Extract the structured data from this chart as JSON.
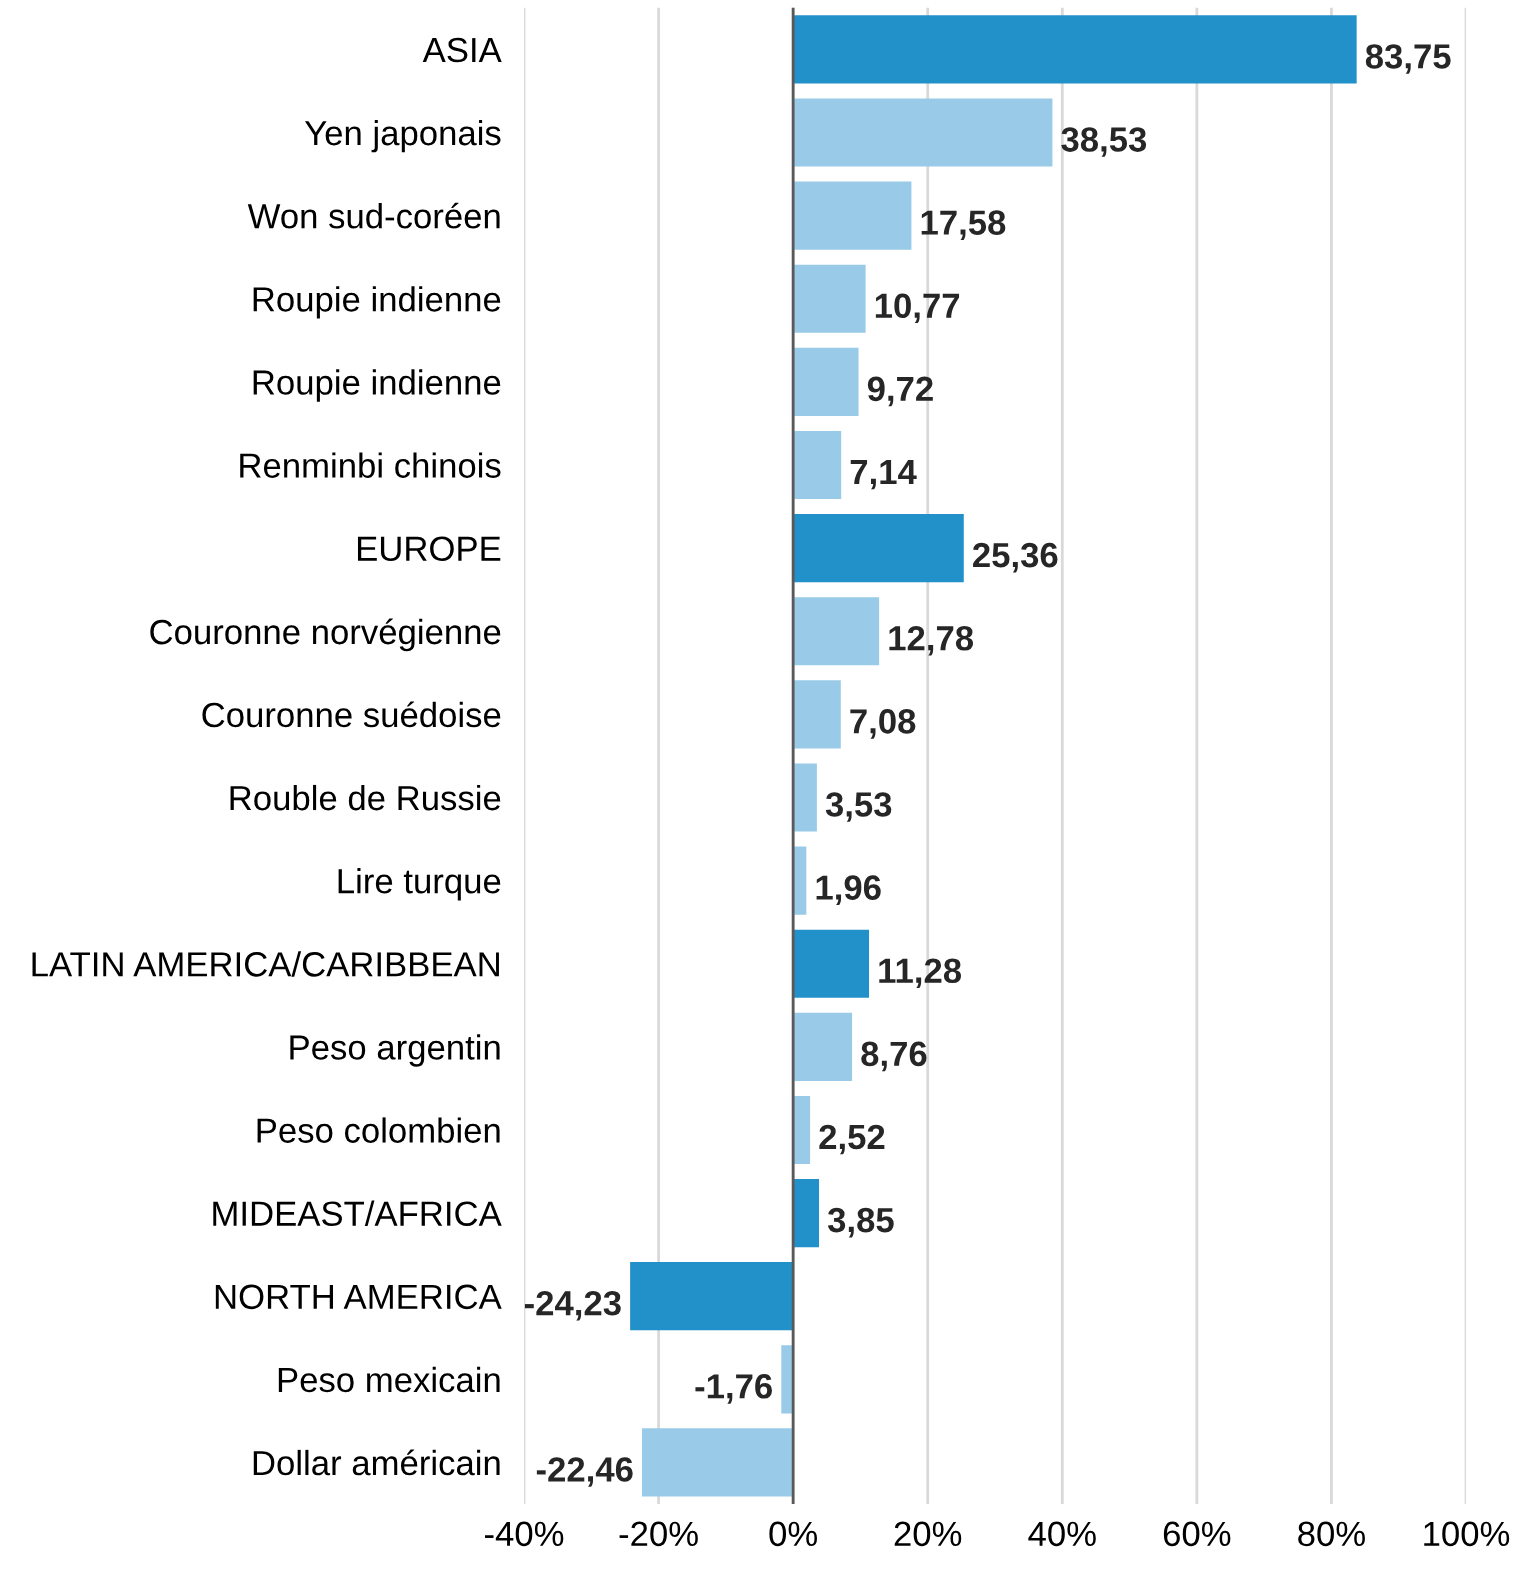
{
  "chart_data": {
    "type": "bar",
    "orientation": "horizontal",
    "categories": [
      "ASIA",
      "Yen japonais",
      "Won sud-coréen",
      "Roupie indienne",
      "Roupie indienne",
      "Renminbi chinois",
      "EUROPE",
      "Couronne norvégienne",
      "Couronne suédoise",
      "Rouble de Russie",
      "Lire turque",
      "LATIN AMERICA/CARIBBEAN",
      "Peso argentin",
      "Peso colombien",
      "MIDEAST/AFRICA",
      "NORTH AMERICA",
      "Peso mexicain",
      "Dollar américain"
    ],
    "values": [
      83.75,
      38.53,
      17.58,
      10.77,
      9.72,
      7.14,
      25.36,
      12.78,
      7.08,
      3.53,
      1.96,
      11.28,
      8.76,
      2.52,
      3.85,
      -24.23,
      -1.76,
      -22.46
    ],
    "colors": [
      "#2391c9",
      "#99cbe9",
      "#99cbe9",
      "#99cbe9",
      "#99cbe9",
      "#99cbe9",
      "#2391c9",
      "#99cbe9",
      "#99cbe9",
      "#99cbe9",
      "#99cbe9",
      "#2391c9",
      "#99cbe9",
      "#99cbe9",
      "#2391c9",
      "#2391c9",
      "#99cbe9",
      "#99cbe9"
    ],
    "value_labels": [
      "83,75",
      "38,53",
      "17,58",
      "10,77",
      "9,72",
      "7,14",
      "25,36",
      "12,78",
      "7,08",
      "3,53",
      "1,96",
      "11,28",
      "8,76",
      "2,52",
      "3,85",
      "-24,23",
      "-1,76",
      "-22,46"
    ],
    "xlim": [
      -40,
      100
    ],
    "xticks": [
      {
        "value": -40,
        "label": "-40%"
      },
      {
        "value": -20,
        "label": "-20%"
      },
      {
        "value": 0,
        "label": "0%"
      },
      {
        "value": 20,
        "label": "20%"
      },
      {
        "value": 40,
        "label": "40%"
      },
      {
        "value": 60,
        "label": "60%"
      },
      {
        "value": 80,
        "label": "80%"
      },
      {
        "value": 100,
        "label": "100%"
      }
    ],
    "grid": "x"
  }
}
